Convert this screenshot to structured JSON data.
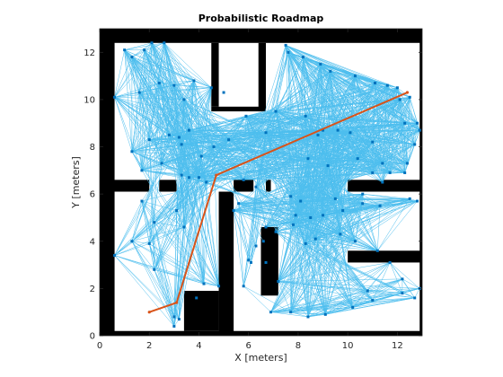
{
  "chart_data": {
    "type": "scatter",
    "title": "Probabilistic Roadmap",
    "xlabel": "X [meters]",
    "ylabel": "Y [meters]",
    "xlim": [
      0,
      13
    ],
    "ylim": [
      0,
      13
    ],
    "xticks": [
      0,
      2,
      4,
      6,
      8,
      10,
      12
    ],
    "yticks": [
      0,
      2,
      4,
      6,
      8,
      10,
      12
    ],
    "grid": false,
    "colors": {
      "obstacle": "#000000",
      "edge": "#4DBEEE",
      "node": "#0072BD",
      "path": "#D95319"
    },
    "obstacles": [
      {
        "x": [
          0,
          0.6
        ],
        "y": [
          0,
          13
        ]
      },
      {
        "x": [
          12.9,
          13
        ],
        "y": [
          0,
          13
        ]
      },
      {
        "x": [
          0,
          13
        ],
        "y": [
          0,
          0.2
        ]
      },
      {
        "x": [
          0,
          13
        ],
        "y": [
          12.4,
          13
        ]
      },
      {
        "x": [
          0,
          2
        ],
        "y": [
          6.1,
          6.6
        ]
      },
      {
        "x": [
          2.4,
          3.1
        ],
        "y": [
          6.1,
          6.6
        ]
      },
      {
        "x": [
          5.4,
          6.2
        ],
        "y": [
          6.1,
          6.6
        ]
      },
      {
        "x": [
          6.7,
          6.9
        ],
        "y": [
          6.1,
          6.6
        ]
      },
      {
        "x": [
          10,
          13
        ],
        "y": [
          6.1,
          6.6
        ]
      },
      {
        "x": [
          6.4,
          6.7
        ],
        "y": [
          9.5,
          12.4
        ]
      },
      {
        "x": [
          4.5,
          6.7
        ],
        "y": [
          9.5,
          9.7
        ]
      },
      {
        "x": [
          4.5,
          4.8
        ],
        "y": [
          9.7,
          12.4
        ]
      },
      {
        "x": [
          4.8,
          5.4
        ],
        "y": [
          0,
          6.1
        ]
      },
      {
        "x": [
          3.4,
          4.8
        ],
        "y": [
          0.2,
          1.9
        ]
      },
      {
        "x": [
          6.5,
          7.2
        ],
        "y": [
          1.7,
          4.6
        ]
      },
      {
        "x": [
          10,
          13
        ],
        "y": [
          3.1,
          3.6
        ]
      }
    ],
    "nodes": {
      "x": [
        1.0,
        1.8,
        2.1,
        2.6,
        1.3,
        0.6,
        1.6,
        2.4,
        3.0,
        3.8,
        4.5,
        3.4,
        5.0,
        3.2,
        2.8,
        2.0,
        1.3,
        2.5,
        1.7,
        4.0,
        3.6,
        3.3,
        3.3,
        3.6,
        4.3,
        4.1,
        1.7,
        0.6,
        1.3,
        2.0,
        2.2,
        3.1,
        3.4,
        4.8,
        5.8,
        5.6,
        5.4,
        3.0,
        3.9,
        3.0,
        3.2,
        4.2,
        6.1,
        6.7,
        7.5,
        7.6,
        8.2,
        8.9,
        9.3,
        10.3,
        11.1,
        11.6,
        12.0,
        12.5,
        12.1,
        12.8,
        12.7,
        12.4,
        11.7,
        11.0,
        10.1,
        9.6,
        9.0,
        8.3,
        7.1,
        5.9,
        6.7,
        8.8,
        8.4,
        9.2,
        10.4,
        11.0,
        11.4,
        12.3,
        12.9,
        12.3,
        12.8,
        12.5,
        11.3,
        10.6,
        9.8,
        9.0,
        8.5,
        8.1,
        7.9,
        6.7,
        6.6,
        7.1,
        7.8,
        8.3,
        8.7,
        9.7,
        10.3,
        11.2,
        11.7,
        12.2,
        12.9,
        12.2,
        12.7,
        11.0,
        10.8,
        10.2,
        9.1,
        8.4,
        7.7,
        6.9,
        7.2,
        6.0,
        6.3,
        7.7,
        9.5,
        10.6,
        11.4,
        4.6,
        2.2,
        5.8,
        6.3,
        5.2
      ],
      "y": [
        12.1,
        12.1,
        12.4,
        12.4,
        11.8,
        10.1,
        10.3,
        10.7,
        10.6,
        10.8,
        10.5,
        10.0,
        10.3,
        8.4,
        8.5,
        8.3,
        7.8,
        7.3,
        7.0,
        6.7,
        8.7,
        8.1,
        6.8,
        6.7,
        6.5,
        7.6,
        5.7,
        3.4,
        4.0,
        3.9,
        4.8,
        5.3,
        4.6,
        2.1,
        2.1,
        5.6,
        5.3,
        0.4,
        1.6,
        0.8,
        0.7,
        2.2,
        3.1,
        3.1,
        12.3,
        12.0,
        11.8,
        11.5,
        11.2,
        11.0,
        10.7,
        10.6,
        10.5,
        10.1,
        10.0,
        9.0,
        8.1,
        7.3,
        6.9,
        8.2,
        8.6,
        8.7,
        8.7,
        9.3,
        9.5,
        9.3,
        8.6,
        8.5,
        7.5,
        7.2,
        7.5,
        6.9,
        7.3,
        6.9,
        8.7,
        9.0,
        5.7,
        5.8,
        5.5,
        5.6,
        5.3,
        5.1,
        5.0,
        5.7,
        5.1,
        4.6,
        4.0,
        4.4,
        4.7,
        3.9,
        4.1,
        4.3,
        4.0,
        3.6,
        3.1,
        2.4,
        2.0,
        1.8,
        1.6,
        1.5,
        1.9,
        1.2,
        0.9,
        0.8,
        1.0,
        1.0,
        2.3,
        3.2,
        3.8,
        5.9,
        5.8,
        6.0,
        6.5,
        8.0,
        2.8,
        6.6,
        6.3,
        8.3
      ]
    },
    "path": {
      "x": [
        2.0,
        3.1,
        4.7,
        12.4
      ],
      "y": [
        1.0,
        1.4,
        6.8,
        10.3
      ]
    }
  }
}
